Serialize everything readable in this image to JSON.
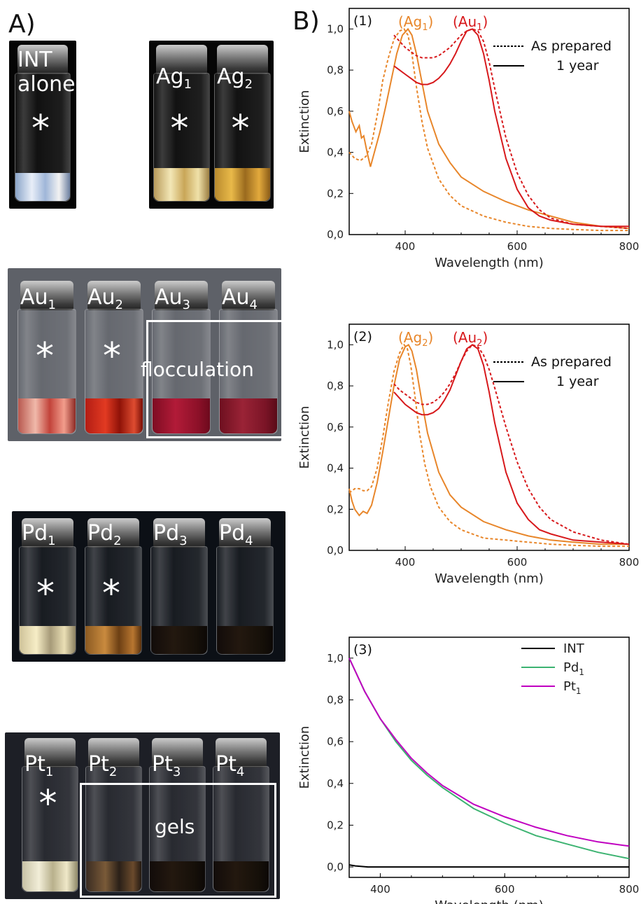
{
  "panel_a": {
    "label": "A)",
    "photos": [
      {
        "vials": [
          {
            "label": "INT",
            "sub": "",
            "label2": "alone",
            "star": true,
            "liquid": "intwhite"
          }
        ]
      },
      {
        "vials": [
          {
            "label": "Ag",
            "sub": "1",
            "star": true,
            "liquid": "ag1"
          },
          {
            "label": "Ag",
            "sub": "2",
            "star": true,
            "liquid": "ag2"
          }
        ]
      },
      {
        "vials": [
          {
            "label": "Au",
            "sub": "1",
            "star": true,
            "liquid": "au1"
          },
          {
            "label": "Au",
            "sub": "2",
            "star": true,
            "liquid": "au2"
          },
          {
            "label": "Au",
            "sub": "3",
            "star": false,
            "liquid": "au3"
          },
          {
            "label": "Au",
            "sub": "4",
            "star": false,
            "liquid": "au4"
          }
        ],
        "note": "flocculation"
      },
      {
        "vials": [
          {
            "label": "Pd",
            "sub": "1",
            "star": true,
            "liquid": "pd1"
          },
          {
            "label": "Pd",
            "sub": "2",
            "star": true,
            "liquid": "pd2"
          },
          {
            "label": "Pd",
            "sub": "3",
            "star": false,
            "liquid": "dark"
          },
          {
            "label": "Pd",
            "sub": "4",
            "star": false,
            "liquid": "dark"
          }
        ]
      },
      {
        "vials": [
          {
            "label": "Pt",
            "sub": "1",
            "star": true,
            "liquid": "pt1"
          },
          {
            "label": "Pt",
            "sub": "2",
            "star": false,
            "liquid": "pt2"
          },
          {
            "label": "Pt",
            "sub": "3",
            "star": false,
            "liquid": "dark"
          },
          {
            "label": "Pt",
            "sub": "4",
            "star": false,
            "liquid": "dark"
          }
        ],
        "note": "gels"
      }
    ]
  },
  "panel_b": {
    "label": "B)"
  },
  "colors": {
    "orange": "#E8862A",
    "red": "#D7191C",
    "black": "#000000",
    "green": "#3CB371",
    "magenta": "#C000C0"
  },
  "chart_data": [
    {
      "type": "line",
      "tag": "(1)",
      "peak_labels": [
        {
          "text": "(Ag",
          "sub": "1",
          "close": ")",
          "color": "#E8862A",
          "x": 405
        },
        {
          "text": "(Au",
          "sub": "1",
          "close": ")",
          "color": "#D7191C",
          "x": 525
        }
      ],
      "legend": [
        {
          "name": "As prepared",
          "style": "dashed"
        },
        {
          "name": "1 year",
          "style": "solid"
        }
      ],
      "xlabel": "Wavelength (nm)",
      "ylabel": "Extinction",
      "xlim": [
        300,
        800
      ],
      "ylim": [
        0,
        1.1
      ],
      "xticks": [
        400,
        600,
        800
      ],
      "yticks": [
        "0,0",
        "0,2",
        "0,4",
        "0,6",
        "0,8",
        "1,0"
      ],
      "series": [
        {
          "color": "#E8862A",
          "dash": false,
          "x": [
            300,
            305,
            312,
            318,
            322,
            326,
            332,
            338,
            345,
            355,
            365,
            375,
            385,
            395,
            405,
            412,
            420,
            430,
            440,
            460,
            480,
            500,
            540,
            580,
            620,
            660,
            700,
            750,
            800
          ],
          "y": [
            0.6,
            0.55,
            0.5,
            0.53,
            0.47,
            0.48,
            0.4,
            0.33,
            0.4,
            0.5,
            0.62,
            0.75,
            0.88,
            0.97,
            1.0,
            0.97,
            0.88,
            0.74,
            0.6,
            0.44,
            0.35,
            0.28,
            0.21,
            0.16,
            0.12,
            0.09,
            0.06,
            0.04,
            0.03
          ]
        },
        {
          "color": "#E8862A",
          "dash": true,
          "x": [
            300,
            310,
            320,
            330,
            340,
            350,
            360,
            370,
            380,
            390,
            398,
            405,
            412,
            420,
            430,
            440,
            460,
            480,
            500,
            540,
            580,
            620,
            660,
            700,
            750,
            800
          ],
          "y": [
            0.4,
            0.37,
            0.36,
            0.38,
            0.44,
            0.58,
            0.75,
            0.86,
            0.95,
            0.99,
            1.0,
            0.97,
            0.88,
            0.72,
            0.55,
            0.42,
            0.27,
            0.19,
            0.14,
            0.09,
            0.06,
            0.04,
            0.03,
            0.025,
            0.02,
            0.02
          ]
        },
        {
          "color": "#D7191C",
          "dash": false,
          "x": [
            380,
            390,
            400,
            410,
            420,
            430,
            440,
            450,
            460,
            470,
            480,
            490,
            500,
            510,
            520,
            530,
            540,
            550,
            560,
            580,
            600,
            620,
            640,
            660,
            700,
            750,
            800
          ],
          "y": [
            0.82,
            0.8,
            0.78,
            0.76,
            0.74,
            0.73,
            0.73,
            0.74,
            0.76,
            0.79,
            0.83,
            0.88,
            0.94,
            0.99,
            1.0,
            0.97,
            0.88,
            0.75,
            0.6,
            0.37,
            0.22,
            0.13,
            0.09,
            0.07,
            0.05,
            0.04,
            0.04
          ]
        },
        {
          "color": "#D7191C",
          "dash": true,
          "x": [
            380,
            390,
            400,
            410,
            420,
            430,
            440,
            450,
            460,
            470,
            480,
            490,
            500,
            510,
            520,
            530,
            540,
            550,
            560,
            580,
            600,
            620,
            640,
            660,
            700,
            750,
            800
          ],
          "y": [
            0.97,
            0.94,
            0.91,
            0.89,
            0.87,
            0.86,
            0.86,
            0.86,
            0.87,
            0.89,
            0.91,
            0.94,
            0.97,
            0.99,
            1.0,
            0.99,
            0.94,
            0.84,
            0.71,
            0.47,
            0.3,
            0.19,
            0.12,
            0.08,
            0.05,
            0.04,
            0.03
          ]
        }
      ]
    },
    {
      "type": "line",
      "tag": "(2)",
      "peak_labels": [
        {
          "text": "(Ag",
          "sub": "2",
          "close": ")",
          "color": "#E8862A",
          "x": 405
        },
        {
          "text": "(Au",
          "sub": "2",
          "close": ")",
          "color": "#D7191C",
          "x": 525
        }
      ],
      "legend": [
        {
          "name": "As prepared",
          "style": "dashed"
        },
        {
          "name": "1 year",
          "style": "solid"
        }
      ],
      "xlabel": "Wavelength (nm)",
      "ylabel": "Extinction",
      "xlim": [
        300,
        800
      ],
      "ylim": [
        0,
        1.1
      ],
      "xticks": [
        400,
        600,
        800
      ],
      "yticks": [
        "0,0",
        "0,2",
        "0,4",
        "0,6",
        "0,8",
        "1,0"
      ],
      "series": [
        {
          "color": "#E8862A",
          "dash": false,
          "x": [
            300,
            305,
            310,
            318,
            325,
            332,
            340,
            350,
            360,
            370,
            380,
            390,
            400,
            406,
            412,
            420,
            430,
            440,
            460,
            480,
            500,
            540,
            580,
            620,
            660,
            700,
            750,
            800
          ],
          "y": [
            0.3,
            0.24,
            0.2,
            0.17,
            0.19,
            0.18,
            0.22,
            0.33,
            0.48,
            0.64,
            0.8,
            0.93,
            0.99,
            1.0,
            0.97,
            0.88,
            0.72,
            0.57,
            0.38,
            0.27,
            0.21,
            0.14,
            0.1,
            0.07,
            0.05,
            0.04,
            0.03,
            0.03
          ]
        },
        {
          "color": "#E8862A",
          "dash": true,
          "x": [
            300,
            310,
            318,
            325,
            332,
            340,
            350,
            360,
            370,
            380,
            390,
            398,
            404,
            410,
            418,
            425,
            435,
            445,
            460,
            480,
            500,
            540,
            580,
            620,
            660,
            700,
            750,
            800
          ],
          "y": [
            0.28,
            0.3,
            0.3,
            0.29,
            0.29,
            0.31,
            0.4,
            0.55,
            0.72,
            0.87,
            0.96,
            1.0,
            0.98,
            0.9,
            0.74,
            0.58,
            0.42,
            0.31,
            0.21,
            0.14,
            0.1,
            0.06,
            0.05,
            0.04,
            0.03,
            0.025,
            0.02,
            0.02
          ]
        },
        {
          "color": "#D7191C",
          "dash": false,
          "x": [
            380,
            390,
            400,
            410,
            420,
            430,
            440,
            450,
            460,
            470,
            480,
            490,
            500,
            510,
            520,
            530,
            540,
            550,
            560,
            580,
            600,
            620,
            640,
            660,
            700,
            750,
            800
          ],
          "y": [
            0.77,
            0.74,
            0.71,
            0.69,
            0.67,
            0.66,
            0.66,
            0.67,
            0.69,
            0.73,
            0.78,
            0.85,
            0.92,
            0.98,
            1.0,
            0.98,
            0.9,
            0.77,
            0.62,
            0.38,
            0.23,
            0.15,
            0.1,
            0.08,
            0.05,
            0.04,
            0.03
          ]
        },
        {
          "color": "#D7191C",
          "dash": true,
          "x": [
            380,
            390,
            400,
            410,
            420,
            430,
            440,
            450,
            460,
            470,
            480,
            490,
            500,
            510,
            520,
            530,
            540,
            550,
            560,
            580,
            600,
            620,
            640,
            660,
            700,
            750,
            800
          ],
          "y": [
            0.81,
            0.78,
            0.76,
            0.74,
            0.72,
            0.71,
            0.71,
            0.72,
            0.74,
            0.77,
            0.81,
            0.86,
            0.92,
            0.97,
            1.0,
            0.99,
            0.95,
            0.88,
            0.79,
            0.6,
            0.43,
            0.3,
            0.21,
            0.15,
            0.09,
            0.05,
            0.03
          ]
        }
      ]
    },
    {
      "type": "line",
      "tag": "(3)",
      "legend": [
        {
          "name": "INT",
          "sub": "",
          "color": "#000000"
        },
        {
          "name": "Pd",
          "sub": "1",
          "color": "#3CB371"
        },
        {
          "name": "Pt",
          "sub": "1",
          "color": "#C000C0"
        }
      ],
      "xlabel": "Wavelength (nm)",
      "ylabel": "Extinction",
      "xlim": [
        350,
        800
      ],
      "ylim": [
        -0.05,
        1.1
      ],
      "xticks": [
        400,
        600,
        800
      ],
      "yticks": [
        "0,0",
        "0,2",
        "0,4",
        "0,6",
        "0,8",
        "1,0"
      ],
      "series": [
        {
          "color": "#000000",
          "dash": false,
          "x": [
            350,
            360,
            380,
            400,
            500,
            600,
            700,
            800
          ],
          "y": [
            0.01,
            0.005,
            0.0,
            0.0,
            0.0,
            0.0,
            0.0,
            0.0
          ]
        },
        {
          "color": "#3CB371",
          "dash": false,
          "x": [
            350,
            375,
            400,
            425,
            450,
            475,
            500,
            550,
            600,
            650,
            700,
            750,
            800
          ],
          "y": [
            1.0,
            0.84,
            0.71,
            0.6,
            0.51,
            0.44,
            0.38,
            0.28,
            0.21,
            0.15,
            0.11,
            0.07,
            0.04
          ]
        },
        {
          "color": "#C000C0",
          "dash": false,
          "x": [
            350,
            375,
            400,
            425,
            450,
            475,
            500,
            550,
            600,
            650,
            700,
            750,
            800
          ],
          "y": [
            1.0,
            0.84,
            0.71,
            0.61,
            0.52,
            0.45,
            0.39,
            0.3,
            0.24,
            0.19,
            0.15,
            0.12,
            0.1
          ]
        }
      ]
    }
  ]
}
